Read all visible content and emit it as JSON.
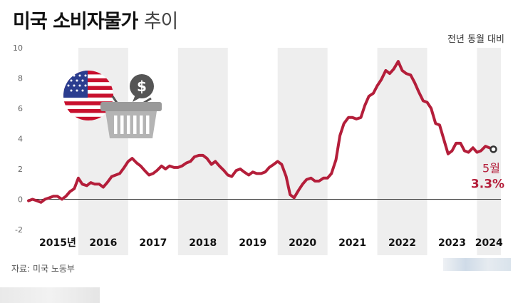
{
  "chart_data": {
    "type": "line",
    "title": "미국 소비자물가",
    "subtitle": "추이",
    "ylabel": "전년 동월 대비",
    "source": "자료: 미국 노동부",
    "ylim": [
      -2,
      10
    ],
    "yticks": [
      "10",
      "8",
      "6",
      "4",
      "2",
      "0",
      "-2"
    ],
    "xlim": [
      2015.0,
      2024.48
    ],
    "x_labels": [
      "2015년",
      "2016",
      "2017",
      "2018",
      "2019",
      "2020",
      "2021",
      "2022",
      "2023",
      "2024"
    ],
    "grid": false,
    "legend": "none",
    "series_color": "#b41e3a",
    "x": [
      2015.0,
      2015.08,
      2015.17,
      2015.25,
      2015.33,
      2015.42,
      2015.5,
      2015.58,
      2015.67,
      2015.75,
      2015.83,
      2015.92,
      2016.0,
      2016.08,
      2016.17,
      2016.25,
      2016.33,
      2016.42,
      2016.5,
      2016.58,
      2016.67,
      2016.75,
      2016.83,
      2016.92,
      2017.0,
      2017.08,
      2017.17,
      2017.25,
      2017.33,
      2017.42,
      2017.5,
      2017.58,
      2017.67,
      2017.75,
      2017.83,
      2017.92,
      2018.0,
      2018.08,
      2018.17,
      2018.25,
      2018.33,
      2018.42,
      2018.5,
      2018.58,
      2018.67,
      2018.75,
      2018.83,
      2018.92,
      2019.0,
      2019.08,
      2019.17,
      2019.25,
      2019.33,
      2019.42,
      2019.5,
      2019.58,
      2019.67,
      2019.75,
      2019.83,
      2019.92,
      2020.0,
      2020.08,
      2020.17,
      2020.25,
      2020.33,
      2020.42,
      2020.5,
      2020.58,
      2020.67,
      2020.75,
      2020.83,
      2020.92,
      2021.0,
      2021.08,
      2021.17,
      2021.25,
      2021.33,
      2021.42,
      2021.5,
      2021.58,
      2021.67,
      2021.75,
      2021.83,
      2021.92,
      2022.0,
      2022.08,
      2022.17,
      2022.25,
      2022.33,
      2022.42,
      2022.5,
      2022.58,
      2022.67,
      2022.75,
      2022.83,
      2022.92,
      2023.0,
      2023.08,
      2023.17,
      2023.25,
      2023.33,
      2023.42,
      2023.5,
      2023.58,
      2023.67,
      2023.75,
      2023.83,
      2023.92,
      2024.0,
      2024.08,
      2024.17,
      2024.25,
      2024.33
    ],
    "values": [
      -0.1,
      0.0,
      -0.1,
      -0.2,
      0.0,
      0.1,
      0.2,
      0.2,
      0.0,
      0.2,
      0.5,
      0.7,
      1.4,
      1.0,
      0.9,
      1.1,
      1.0,
      1.0,
      0.8,
      1.1,
      1.5,
      1.6,
      1.7,
      2.1,
      2.5,
      2.7,
      2.4,
      2.2,
      1.9,
      1.6,
      1.7,
      1.9,
      2.2,
      2.0,
      2.2,
      2.1,
      2.1,
      2.2,
      2.4,
      2.5,
      2.8,
      2.9,
      2.9,
      2.7,
      2.3,
      2.5,
      2.2,
      1.9,
      1.6,
      1.5,
      1.9,
      2.0,
      1.8,
      1.6,
      1.8,
      1.7,
      1.7,
      1.8,
      2.1,
      2.3,
      2.5,
      2.3,
      1.5,
      0.3,
      0.1,
      0.6,
      1.0,
      1.3,
      1.4,
      1.2,
      1.2,
      1.4,
      1.4,
      1.7,
      2.6,
      4.2,
      5.0,
      5.4,
      5.4,
      5.3,
      5.4,
      6.2,
      6.8,
      7.0,
      7.5,
      7.9,
      8.5,
      8.3,
      8.6,
      9.1,
      8.5,
      8.3,
      8.2,
      7.7,
      7.1,
      6.5,
      6.4,
      6.0,
      5.0,
      4.9,
      4.0,
      3.0,
      3.2,
      3.7,
      3.7,
      3.2,
      3.1,
      3.4,
      3.1,
      3.2,
      3.5,
      3.4,
      3.3
    ],
    "annotation": {
      "label": "5월",
      "value_label": "3.3%",
      "x": 2024.33,
      "y": 3.3
    }
  }
}
